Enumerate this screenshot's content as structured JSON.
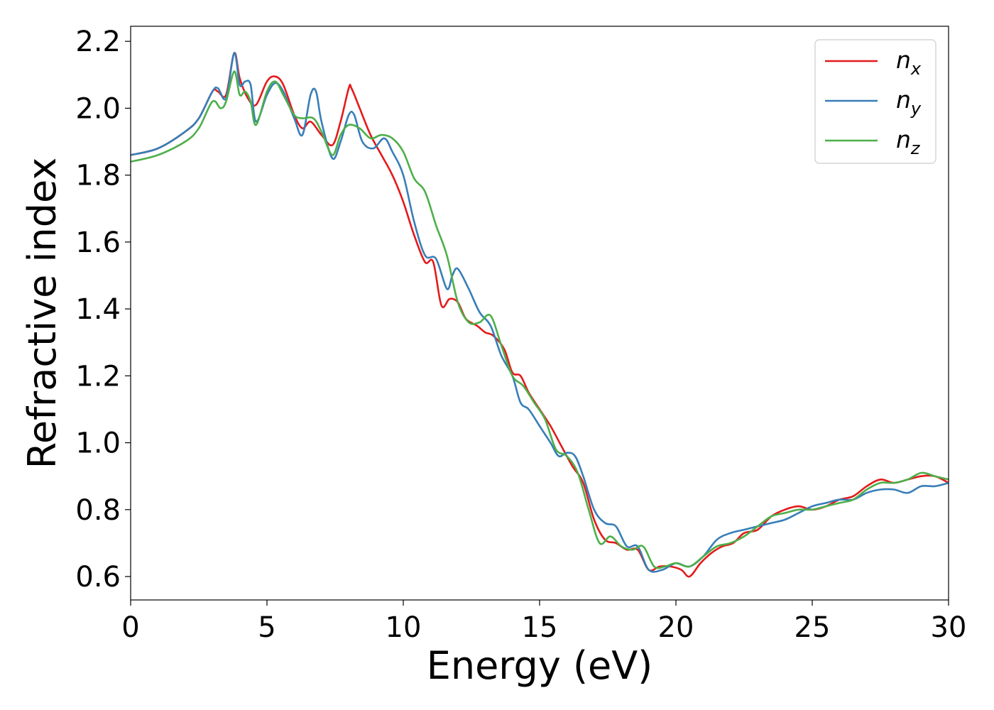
{
  "chart_data": {
    "type": "line",
    "xlabel": "Energy (eV)",
    "ylabel": "Refractive index",
    "xlim": [
      0,
      30
    ],
    "ylim": [
      0.53,
      2.245
    ],
    "xticks": [
      0,
      5,
      10,
      15,
      20,
      25,
      30
    ],
    "xtick_labels": [
      "0",
      "5",
      "10",
      "15",
      "20",
      "25",
      "30"
    ],
    "yticks": [
      0.6,
      0.8,
      1.0,
      1.2,
      1.4,
      1.6,
      1.8,
      2.0,
      2.2
    ],
    "ytick_labels": [
      "0.6",
      "0.8",
      "1.0",
      "1.2",
      "1.4",
      "1.6",
      "1.8",
      "2.0",
      "2.2"
    ],
    "grid": false,
    "legend_position": "top-right",
    "series": [
      {
        "name": "n",
        "subscript": "x",
        "color": "#e41a1c",
        "x": [
          0,
          1,
          2,
          2.5,
          3,
          3.2,
          3.5,
          3.8,
          4.0,
          4.3,
          4.6,
          5.0,
          5.3,
          5.6,
          6.0,
          6.3,
          6.6,
          7.0,
          7.4,
          7.7,
          8.0,
          8.1,
          8.4,
          8.8,
          9.2,
          9.6,
          10.0,
          10.4,
          10.8,
          11.1,
          11.4,
          11.7,
          12.0,
          12.3,
          12.7,
          13.0,
          13.3,
          13.7,
          14.0,
          14.3,
          14.6,
          15.0,
          15.4,
          15.8,
          16.2,
          16.6,
          17.0,
          17.4,
          17.8,
          18.2,
          18.6,
          19.0,
          19.4,
          19.8,
          20.2,
          20.5,
          20.9,
          21.3,
          21.7,
          22.1,
          22.5,
          23.0,
          23.5,
          24.0,
          24.5,
          25.0,
          25.5,
          26.0,
          26.5,
          27.0,
          27.5,
          28.0,
          28.5,
          29.0,
          29.5,
          30.0
        ],
        "y": [
          1.86,
          1.88,
          1.93,
          1.97,
          2.05,
          2.05,
          2.04,
          2.165,
          2.09,
          2.03,
          2.01,
          2.08,
          2.095,
          2.07,
          1.98,
          1.94,
          1.96,
          1.92,
          1.89,
          1.96,
          2.06,
          2.06,
          2.0,
          1.92,
          1.86,
          1.8,
          1.72,
          1.62,
          1.54,
          1.54,
          1.41,
          1.43,
          1.42,
          1.37,
          1.35,
          1.33,
          1.32,
          1.28,
          1.21,
          1.2,
          1.15,
          1.1,
          1.05,
          0.99,
          0.93,
          0.88,
          0.77,
          0.71,
          0.7,
          0.68,
          0.68,
          0.62,
          0.63,
          0.63,
          0.62,
          0.6,
          0.64,
          0.67,
          0.69,
          0.7,
          0.73,
          0.74,
          0.78,
          0.8,
          0.81,
          0.8,
          0.81,
          0.83,
          0.84,
          0.87,
          0.89,
          0.88,
          0.89,
          0.9,
          0.9,
          0.88
        ]
      },
      {
        "name": "n",
        "subscript": "y",
        "color": "#377eb8",
        "x": [
          0,
          1,
          2,
          2.5,
          3,
          3.2,
          3.5,
          3.8,
          4.0,
          4.2,
          4.4,
          4.6,
          5.0,
          5.3,
          5.6,
          6.0,
          6.3,
          6.6,
          6.8,
          7.0,
          7.4,
          7.7,
          8.0,
          8.2,
          8.5,
          8.9,
          9.3,
          9.6,
          10.0,
          10.4,
          10.8,
          11.2,
          11.6,
          11.8,
          12.0,
          12.4,
          12.8,
          13.2,
          13.6,
          14.0,
          14.3,
          14.6,
          15.0,
          15.4,
          15.7,
          16.0,
          16.3,
          16.6,
          17.0,
          17.4,
          17.8,
          18.2,
          18.6,
          19.0,
          19.5,
          20.0,
          20.5,
          21.0,
          21.5,
          22.0,
          22.5,
          23.0,
          23.5,
          24.0,
          24.5,
          25.0,
          25.5,
          26.0,
          26.5,
          27.0,
          27.5,
          28.0,
          28.5,
          29.0,
          29.5,
          30.0
        ],
        "y": [
          1.86,
          1.88,
          1.93,
          1.97,
          2.05,
          2.06,
          2.03,
          2.165,
          2.07,
          2.08,
          2.07,
          1.96,
          2.04,
          2.075,
          2.05,
          1.97,
          1.92,
          2.04,
          2.05,
          1.96,
          1.85,
          1.9,
          1.98,
          1.98,
          1.9,
          1.88,
          1.91,
          1.87,
          1.8,
          1.66,
          1.56,
          1.55,
          1.46,
          1.5,
          1.52,
          1.46,
          1.39,
          1.35,
          1.26,
          1.2,
          1.12,
          1.1,
          1.05,
          1.0,
          0.96,
          0.97,
          0.96,
          0.9,
          0.8,
          0.76,
          0.75,
          0.69,
          0.69,
          0.62,
          0.62,
          0.64,
          0.63,
          0.66,
          0.71,
          0.73,
          0.74,
          0.75,
          0.76,
          0.77,
          0.79,
          0.81,
          0.82,
          0.83,
          0.83,
          0.85,
          0.86,
          0.86,
          0.85,
          0.87,
          0.87,
          0.88
        ]
      },
      {
        "name": "n",
        "subscript": "z",
        "color": "#4daf4a",
        "x": [
          0,
          1,
          2,
          2.5,
          3,
          3.3,
          3.5,
          3.8,
          4.0,
          4.2,
          4.4,
          4.6,
          5.0,
          5.3,
          5.6,
          6.0,
          6.3,
          6.7,
          7.0,
          7.4,
          7.7,
          8.0,
          8.4,
          8.8,
          9.2,
          9.6,
          10.0,
          10.4,
          10.8,
          11.2,
          11.6,
          12.0,
          12.4,
          12.8,
          13.2,
          13.6,
          14.0,
          14.4,
          14.8,
          15.2,
          15.6,
          16.0,
          16.4,
          16.8,
          17.2,
          17.6,
          18.0,
          18.4,
          18.8,
          19.2,
          19.6,
          20.0,
          20.5,
          21.0,
          21.5,
          22.0,
          22.5,
          23.0,
          23.5,
          24.0,
          24.5,
          25.0,
          25.5,
          26.0,
          26.5,
          27.0,
          27.5,
          28.0,
          28.5,
          29.0,
          29.5,
          30.0
        ],
        "y": [
          1.84,
          1.86,
          1.9,
          1.94,
          2.02,
          2.0,
          2.02,
          2.11,
          2.04,
          2.05,
          2.02,
          1.95,
          2.05,
          2.08,
          2.04,
          1.98,
          1.97,
          1.97,
          1.93,
          1.86,
          1.92,
          1.95,
          1.94,
          1.91,
          1.92,
          1.91,
          1.87,
          1.79,
          1.75,
          1.65,
          1.56,
          1.42,
          1.36,
          1.36,
          1.38,
          1.29,
          1.2,
          1.17,
          1.12,
          1.07,
          0.98,
          0.96,
          0.91,
          0.8,
          0.7,
          0.72,
          0.69,
          0.68,
          0.69,
          0.63,
          0.63,
          0.64,
          0.63,
          0.66,
          0.69,
          0.7,
          0.72,
          0.75,
          0.78,
          0.79,
          0.8,
          0.8,
          0.81,
          0.82,
          0.83,
          0.86,
          0.88,
          0.88,
          0.89,
          0.91,
          0.9,
          0.89
        ]
      }
    ]
  }
}
